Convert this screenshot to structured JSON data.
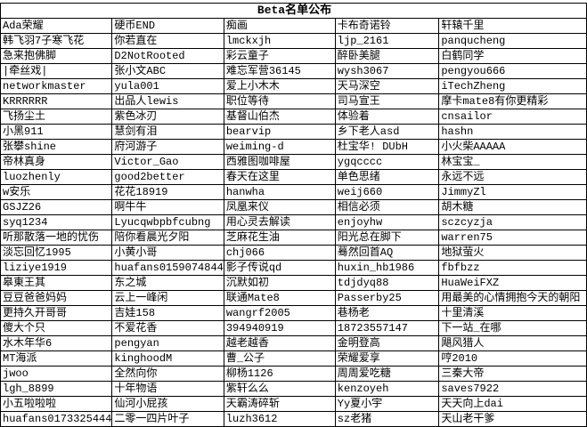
{
  "title": "Beta名单公布",
  "headers": [
    "Ada荣耀",
    "硬币END",
    "痴画",
    "卡布奇诺铃",
    "轩辕千里"
  ],
  "rows": [
    [
      "韩飞羽7子寒飞花",
      "你若直在",
      "lmckxjh",
      "ljp_2161",
      "panqucheng"
    ],
    [
      "急来抱佛脚",
      "D2NotRooted",
      "彩云童子",
      "醉卧美腿",
      "白鹤同学"
    ],
    [
      " |牵丝戏|",
      "张小文ABC",
      "难忘军营36145",
      "wysh3067",
      "pengyou666"
    ],
    [
      "networkmaster",
      "yula001",
      "爱上小木木",
      "天马深空",
      "iTechZheng"
    ],
    [
      "KRRRRRR",
      "出品人lewis",
      "职位等待",
      "司马宣王",
      "摩卡mate8有你更精彩"
    ],
    [
      "飞扬尘土",
      "紫色冰刃",
      "基督山伯杰",
      "体验着",
      "cnsailor"
    ],
    [
      "小黑911",
      "慧剑有泪",
      "bearvip",
      "乡下老人asd",
      "hashn"
    ],
    [
      "张攀shine",
      "府河游子",
      "weiming-d",
      "杜宝华! DUbH",
      "小火柴AAAAA"
    ],
    [
      "帝林真身",
      "Victor_Gao",
      "西雅图咖啡屋",
      "ygqcccc",
      "林宝宝_"
    ],
    [
      "luozhenly",
      "good2better",
      "春天在这里",
      "单色思绪",
      "永远不远"
    ],
    [
      " w安乐",
      "花花18919",
      "hanwha",
      "weij660",
      "JimmyZl"
    ],
    [
      "GSJZ26",
      "啊牛牛",
      "凤凰来仪",
      "相信必须",
      "胡木糖"
    ],
    [
      "syq1234",
      "Lyucqwbpbfcubng",
      "用心灵去解读",
      "enjoyhw",
      "sczcyzja"
    ],
    [
      "听那散落一地的忧伤",
      "陪你看晨光夕阳",
      "芝麻花生油",
      "阳光总在脚下",
      "warren75"
    ],
    [
      "淡忘回忆1995",
      "小黄小哥",
      "chj066",
      "蓦然回首AQ",
      "地狱萤火"
    ],
    [
      "liziye1919",
      "huafans0159074844",
      "影子传说qd",
      "huxin_hb1986",
      "fbfbzz"
    ],
    [
      "皋東王其",
      "东之城",
      "沉默如初",
      "tdjdyq88",
      "HuaWeiFXZ"
    ],
    [
      "豆豆爸爸妈妈",
      "云上一峰闲",
      "联通Mate8",
      "Passerby25",
      "用最美的心情拥抱今天的朝阳"
    ],
    [
      "更持久开哥哥",
      "吉娃158",
      "wangrf2005",
      "巷杨老",
      "十里清溪"
    ],
    [
      "傻大个只",
      "不爱花香",
      "394940919",
      "18723557147",
      "下一站_在哪"
    ],
    [
      "水木年华6",
      "pengyan",
      "越老越香",
      "金明登高",
      "飓风猎人"
    ],
    [
      "MT海派",
      "kinghoodM",
      "曹_公子",
      "荣耀爱享",
      "哼2010"
    ],
    [
      "jwoo",
      "全然向你",
      "柳杨1126",
      "周周爱吃糖",
      "三秦大帝"
    ],
    [
      "lgh_8899",
      "十年物语",
      "紫轩么么",
      "kenzoyeh",
      "saves7922"
    ],
    [
      "小五啦啦啦",
      "仙河小屁孩",
      "天霸涛碎斩",
      "Yy夏小宇",
      "天天向上dai"
    ],
    [
      "huafans0173325444",
      "二零一四片叶子",
      "luzh3612",
      "sz老猪",
      "天山老干爹"
    ]
  ]
}
